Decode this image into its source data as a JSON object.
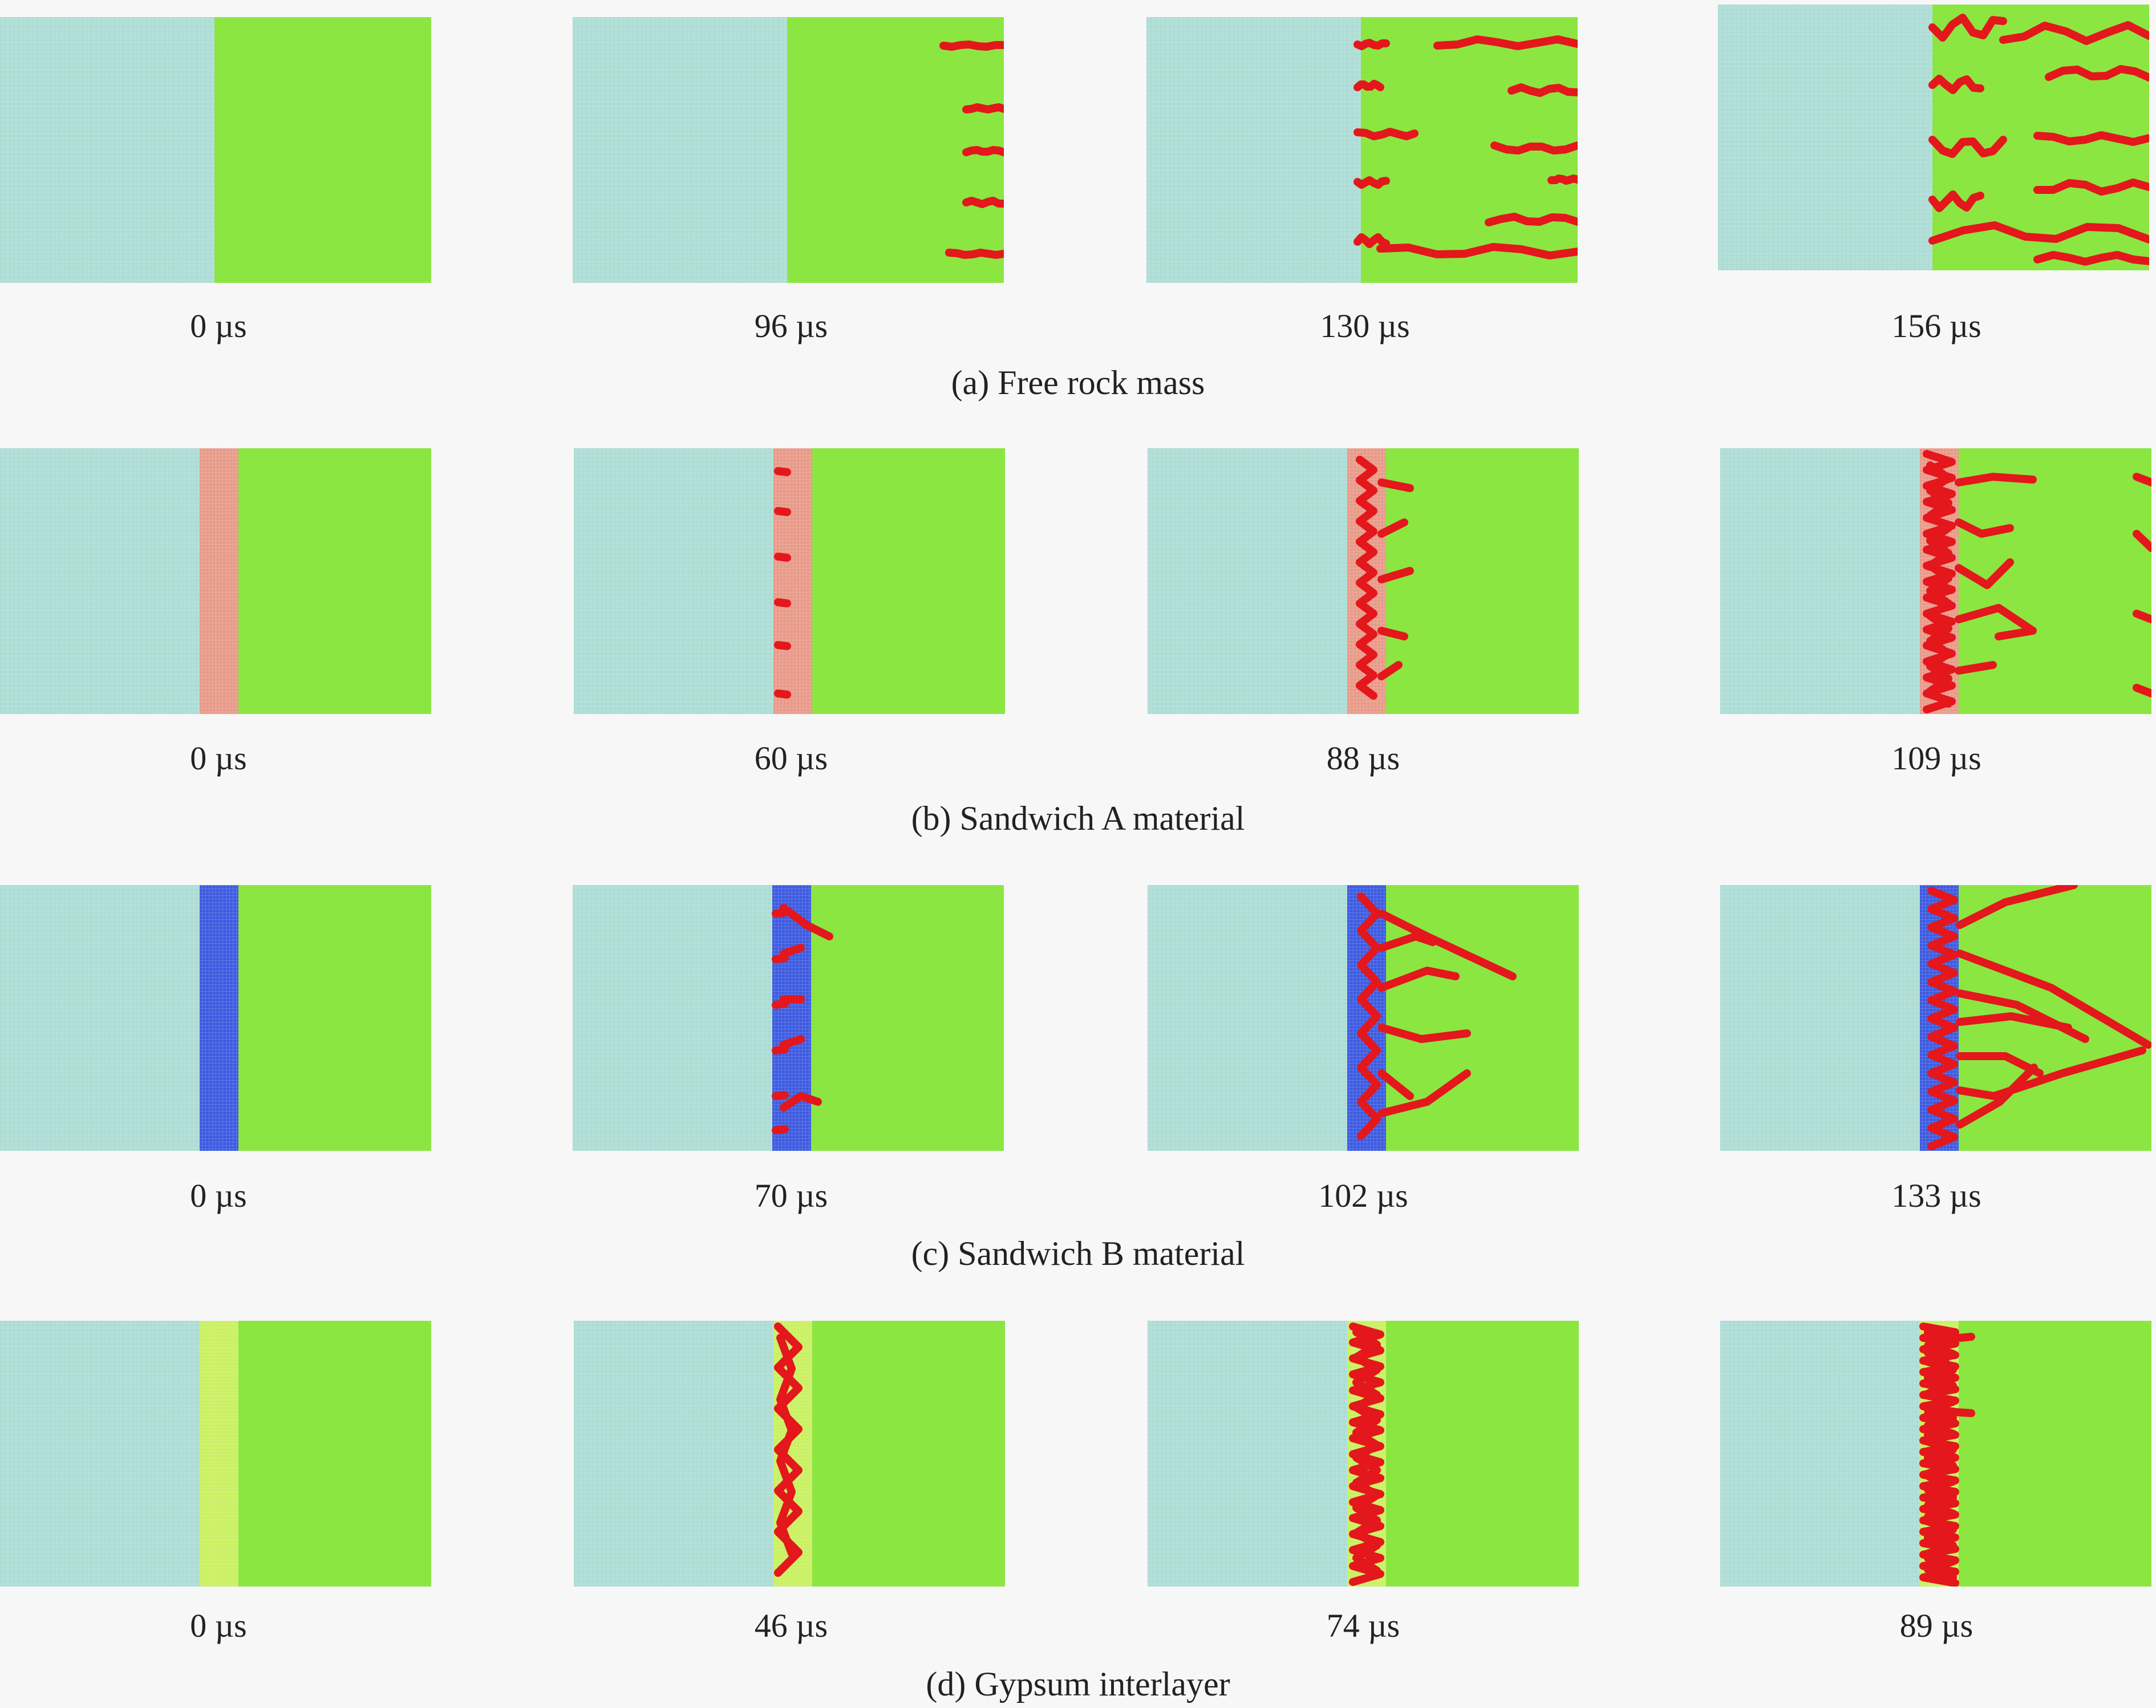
{
  "colors": {
    "rock_left": "#b4e0da",
    "rock_right": "#8be641",
    "crack": "#e3171c",
    "grid_line": "#9fcfc8",
    "interlayer": {
      "free": "",
      "sandwich_a": "#e89a88",
      "sandwich_b": "#3d5be0",
      "gypsum": "#c9f060"
    }
  },
  "rows": [
    {
      "id": "free",
      "caption": "(a) Free rock mass",
      "interlayer": false,
      "panels": [
        {
          "time_label": "0 µs",
          "crack_stage": 0
        },
        {
          "time_label": "96 µs",
          "crack_stage": 1
        },
        {
          "time_label": "130 µs",
          "crack_stage": 2
        },
        {
          "time_label": "156 µs",
          "crack_stage": 3
        }
      ]
    },
    {
      "id": "sandwich_a",
      "caption": "(b) Sandwich A material",
      "interlayer": true,
      "panels": [
        {
          "time_label": "0 µs",
          "crack_stage": 0
        },
        {
          "time_label": "60 µs",
          "crack_stage": 1
        },
        {
          "time_label": "88 µs",
          "crack_stage": 2
        },
        {
          "time_label": "109 µs",
          "crack_stage": 3
        }
      ]
    },
    {
      "id": "sandwich_b",
      "caption": "(c) Sandwich B material",
      "interlayer": true,
      "panels": [
        {
          "time_label": "0 µs",
          "crack_stage": 0
        },
        {
          "time_label": "70 µs",
          "crack_stage": 1
        },
        {
          "time_label": "102 µs",
          "crack_stage": 2
        },
        {
          "time_label": "133 µs",
          "crack_stage": 3
        }
      ]
    },
    {
      "id": "gypsum",
      "caption": "(d) Gypsum interlayer",
      "interlayer": true,
      "panels": [
        {
          "time_label": "0 µs",
          "crack_stage": 0
        },
        {
          "time_label": "46 µs",
          "crack_stage": 1
        },
        {
          "time_label": "74 µs",
          "crack_stage": 2
        },
        {
          "time_label": "89 µs",
          "crack_stage": 3
        }
      ]
    }
  ]
}
